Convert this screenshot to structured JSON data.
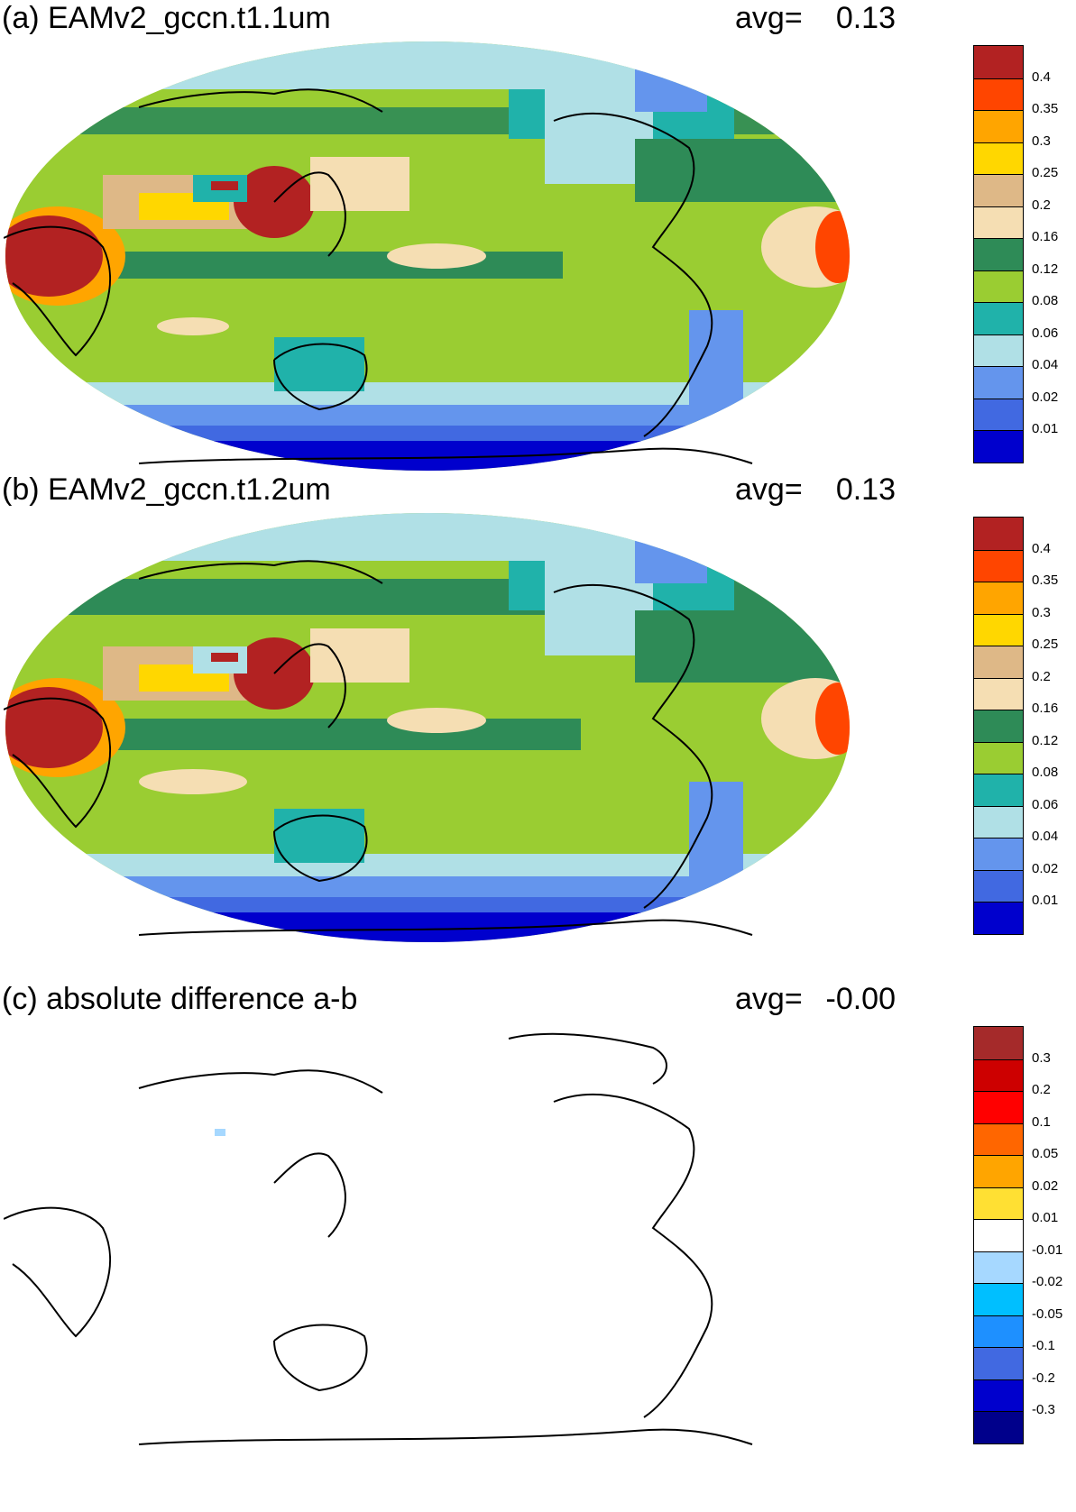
{
  "panels": [
    {
      "title": "(a) EAMv2_gccn.t1.1um",
      "avg_label": "avg=",
      "avg_value": "0.13",
      "colorbar": {
        "labels": [
          "0.4",
          "0.35",
          "0.3",
          "0.25",
          "0.2",
          "0.16",
          "0.12",
          "0.08",
          "0.06",
          "0.04",
          "0.02",
          "0.01"
        ],
        "colors": [
          "#b22222",
          "#ff4500",
          "#ffa500",
          "#ffd700",
          "#deb887",
          "#f5deb3",
          "#2e8b57",
          "#9acd32",
          "#20b2aa",
          "#b0e0e6",
          "#6495ed",
          "#4169e1",
          "#0000cd"
        ]
      }
    },
    {
      "title": "(b) EAMv2_gccn.t1.2um",
      "avg_label": "avg=",
      "avg_value": "0.13",
      "colorbar": {
        "labels": [
          "0.4",
          "0.35",
          "0.3",
          "0.25",
          "0.2",
          "0.16",
          "0.12",
          "0.08",
          "0.06",
          "0.04",
          "0.02",
          "0.01"
        ],
        "colors": [
          "#b22222",
          "#ff4500",
          "#ffa500",
          "#ffd700",
          "#deb887",
          "#f5deb3",
          "#2e8b57",
          "#9acd32",
          "#20b2aa",
          "#b0e0e6",
          "#6495ed",
          "#4169e1",
          "#0000cd"
        ]
      }
    },
    {
      "title": "(c) absolute difference a-b",
      "avg_label": "avg=",
      "avg_value": "-0.00",
      "colorbar": {
        "labels": [
          "0.3",
          "0.2",
          "0.1",
          "0.05",
          "0.02",
          "0.01",
          "-0.01",
          "-0.02",
          "-0.05",
          "-0.1",
          "-0.2",
          "-0.3"
        ],
        "colors": [
          "#a52a2a",
          "#cd0000",
          "#ff0000",
          "#ff6600",
          "#ffa500",
          "#ffe033",
          "#ffffff",
          "#a6d8ff",
          "#00bfff",
          "#1e90ff",
          "#4169e1",
          "#0000cd",
          "#00008b"
        ]
      }
    }
  ]
}
